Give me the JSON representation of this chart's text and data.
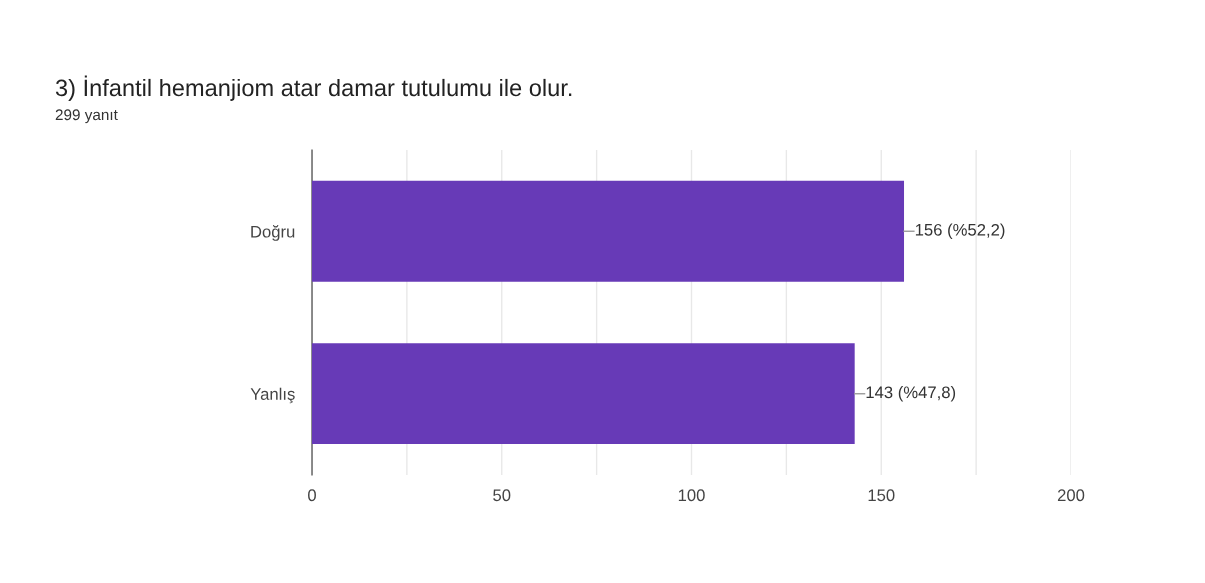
{
  "chart_data": {
    "type": "bar",
    "orientation": "horizontal",
    "title": "3) İnfantil hemanjiom atar damar tutulumu ile olur.",
    "subtitle": "299 yanıt",
    "categories": [
      "Doğru",
      "Yanlış"
    ],
    "values": [
      156,
      143
    ],
    "color": "#673ab7",
    "value_labels": [
      "156 (%52,2)",
      "143 (%47,8)"
    ],
    "xlim": [
      0,
      200
    ],
    "xticks": [
      0,
      {
        "value": 25,
        "label": null
      },
      50,
      {
        "value": 75,
        "label": null
      },
      100,
      {
        "value": 125,
        "label": null
      },
      150,
      {
        "value": 175,
        "label": null
      },
      200
    ],
    "grid": "x",
    "legend": false
  }
}
